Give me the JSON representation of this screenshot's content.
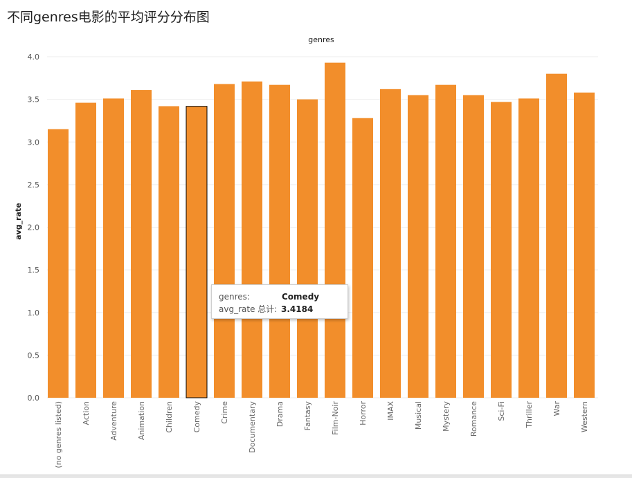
{
  "page": {
    "title": "不同genres电影的平均评分分布图"
  },
  "chart_data": {
    "type": "bar",
    "title": "genres",
    "xlabel": "",
    "ylabel": "avg_rate",
    "ylim": [
      0,
      4
    ],
    "yticks": [
      "0.0",
      "0.5",
      "1.0",
      "1.5",
      "2.0",
      "2.5",
      "3.0",
      "3.5",
      "4.0"
    ],
    "grid": true,
    "bar_color": "#f28e2b",
    "categories": [
      "(no genres listed)",
      "Action",
      "Adventure",
      "Animation",
      "Children",
      "Comedy",
      "Crime",
      "Documentary",
      "Drama",
      "Fantasy",
      "Film-Noir",
      "Horror",
      "IMAX",
      "Musical",
      "Mystery",
      "Romance",
      "Sci-Fi",
      "Thriller",
      "War",
      "Western"
    ],
    "values": [
      3.15,
      3.46,
      3.51,
      3.61,
      3.42,
      3.4184,
      3.68,
      3.71,
      3.67,
      3.5,
      3.93,
      3.28,
      3.62,
      3.55,
      3.67,
      3.55,
      3.47,
      3.51,
      3.8,
      3.58
    ],
    "highlighted": "Comedy"
  },
  "tooltip": {
    "genre_key": "genres:",
    "genre_value": "Comedy",
    "rate_key": "avg_rate 总计:",
    "rate_value": "3.4184"
  }
}
